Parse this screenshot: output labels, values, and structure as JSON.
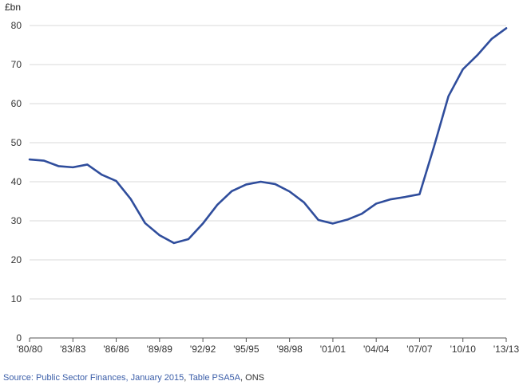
{
  "chart_data": {
    "type": "line",
    "title": "",
    "ylabel": "£bn",
    "xlabel": "",
    "ylim": [
      0,
      80
    ],
    "yticks": [
      0,
      10,
      20,
      30,
      40,
      50,
      60,
      70,
      80
    ],
    "x_tick_labels": [
      "'80/80",
      "'83/83",
      "'86/86",
      "'89/89",
      "'92/92",
      "'95/95",
      "'98/98",
      "'01/01",
      "'04/04",
      "'07/07",
      "'10/10",
      "'13/13"
    ],
    "grid": "horizontal",
    "line_color": "#2f4d9c",
    "x": [
      "1980",
      "1981",
      "1982",
      "1983",
      "1984",
      "1985",
      "1986",
      "1987",
      "1988",
      "1989",
      "1990",
      "1991",
      "1992",
      "1993",
      "1994",
      "1995",
      "1996",
      "1997",
      "1998",
      "1999",
      "2000",
      "2001",
      "2002",
      "2003",
      "2004",
      "2005",
      "2006",
      "2007",
      "2008",
      "2009",
      "2010",
      "2011",
      "2012",
      "2013"
    ],
    "values": [
      45.7,
      45.4,
      44.0,
      43.7,
      44.4,
      41.8,
      40.2,
      35.6,
      29.4,
      26.3,
      24.3,
      25.3,
      29.3,
      34.1,
      37.6,
      39.3,
      40.0,
      39.4,
      37.5,
      34.7,
      30.2,
      29.3,
      30.3,
      31.8,
      34.4,
      35.5,
      36.1,
      36.8,
      49.0,
      61.9,
      68.8,
      72.4,
      76.6,
      79.3
    ]
  },
  "source": {
    "label": "Source:",
    "link1": "Public Sector Finances, January 2015",
    "sep1": ", ",
    "link2": "Table PSA5A",
    "sep2": ", ",
    "tail": "ONS"
  }
}
